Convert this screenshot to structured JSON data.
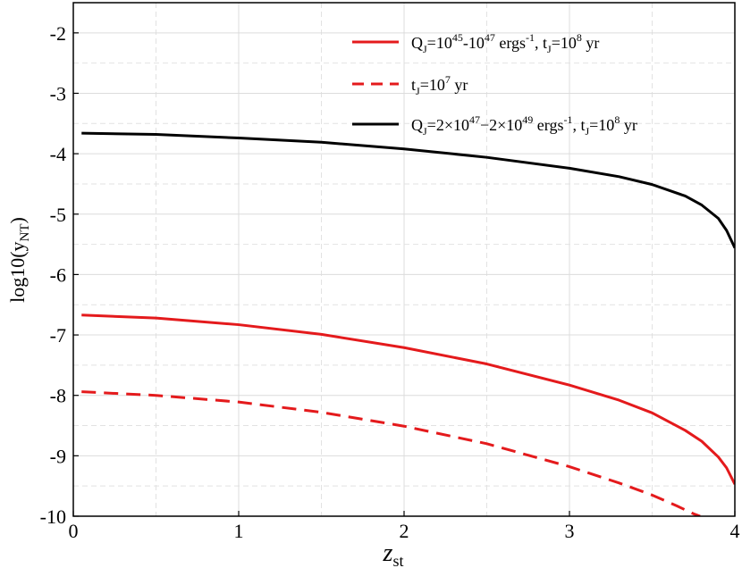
{
  "chart_data": {
    "type": "line",
    "xlabel": {
      "main": "z",
      "sub": "st"
    },
    "ylabel": {
      "main": "log10(y",
      "sub": "NT",
      "end": ")"
    },
    "xlim": [
      0,
      4
    ],
    "ylim": [
      -10,
      -1.5
    ],
    "xticks": [
      0,
      1,
      2,
      3,
      4
    ],
    "xtick_labels": [
      "0",
      "1",
      "2",
      "3",
      "4"
    ],
    "yticks": [
      -10,
      -9,
      -8,
      -7,
      -6,
      -5,
      -4,
      -3,
      -2
    ],
    "ytick_labels": [
      "-10",
      "-9",
      "-8",
      "-7",
      "-6",
      "-5",
      "-4",
      "-3",
      "-2"
    ],
    "grid": true,
    "legend_position": "top-right",
    "series": [
      {
        "color": "#e41a1c",
        "dash": "solid",
        "legend_parts": [
          [
            "Q",
            ""
          ],
          [
            "J",
            "sub"
          ],
          [
            "=10",
            ""
          ],
          [
            "45",
            "sup"
          ],
          [
            "-10",
            ""
          ],
          [
            "47",
            "sup"
          ],
          [
            " ergs",
            ""
          ],
          [
            "-1",
            "sup"
          ],
          [
            ", t",
            ""
          ],
          [
            "J",
            "sub"
          ],
          [
            "=10",
            ""
          ],
          [
            "8",
            "sup"
          ],
          [
            " yr",
            ""
          ]
        ],
        "x": [
          0.05,
          0.5,
          1.0,
          1.5,
          2.0,
          2.5,
          3.0,
          3.3,
          3.5,
          3.7,
          3.8,
          3.9,
          3.95,
          4.0
        ],
        "y": [
          -6.67,
          -6.72,
          -6.83,
          -6.99,
          -7.21,
          -7.48,
          -7.83,
          -8.08,
          -8.29,
          -8.58,
          -8.76,
          -9.02,
          -9.2,
          -9.47
        ]
      },
      {
        "color": "#e41a1c",
        "dash": "dashed",
        "legend_parts": [
          [
            "t",
            ""
          ],
          [
            "J",
            "sub"
          ],
          [
            "=10",
            ""
          ],
          [
            "7",
            "sup"
          ],
          [
            " yr",
            ""
          ]
        ],
        "x": [
          0.05,
          0.5,
          1.0,
          1.5,
          2.0,
          2.5,
          3.0,
          3.3,
          3.5,
          3.65,
          3.75,
          3.79
        ],
        "y": [
          -7.94,
          -8.0,
          -8.11,
          -8.28,
          -8.51,
          -8.8,
          -9.18,
          -9.45,
          -9.65,
          -9.83,
          -9.96,
          -10.0
        ]
      },
      {
        "color": "#000000",
        "dash": "solid",
        "legend_parts": [
          [
            "Q",
            ""
          ],
          [
            "J",
            "sub"
          ],
          [
            "=2×10",
            ""
          ],
          [
            "47",
            "sup"
          ],
          [
            "−2×10",
            ""
          ],
          [
            "49",
            "sup"
          ],
          [
            " ergs",
            ""
          ],
          [
            "-1",
            "sup"
          ],
          [
            ", t",
            ""
          ],
          [
            "J",
            "sub"
          ],
          [
            "=10",
            ""
          ],
          [
            "8",
            "sup"
          ],
          [
            " yr",
            ""
          ]
        ],
        "x": [
          0.05,
          0.5,
          1.0,
          1.5,
          2.0,
          2.5,
          3.0,
          3.3,
          3.5,
          3.7,
          3.8,
          3.9,
          3.95,
          4.0
        ],
        "y": [
          -3.66,
          -3.68,
          -3.74,
          -3.81,
          -3.92,
          -4.06,
          -4.24,
          -4.38,
          -4.51,
          -4.7,
          -4.85,
          -5.07,
          -5.27,
          -5.56
        ]
      }
    ]
  }
}
